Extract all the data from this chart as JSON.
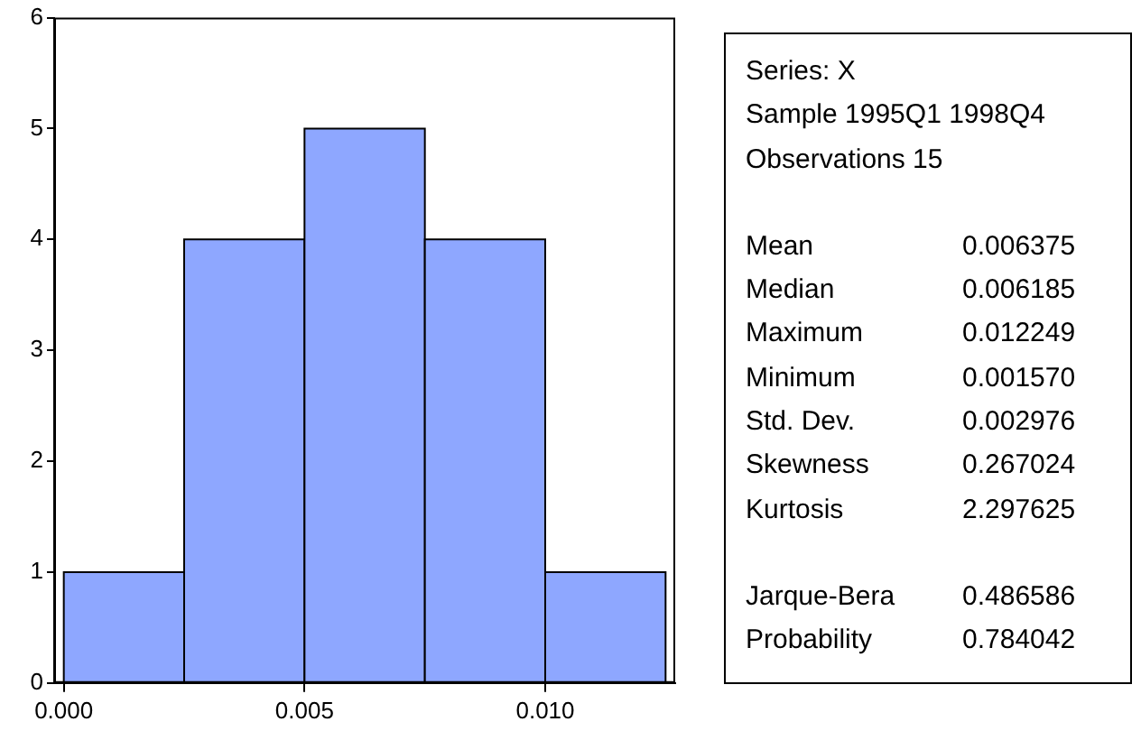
{
  "chart_data": {
    "type": "histogram",
    "bins": [
      0,
      0.0025,
      0.005,
      0.0075,
      0.01,
      0.0125
    ],
    "values": [
      1,
      4,
      5,
      4,
      1
    ],
    "color": "#8ea7ff",
    "xlim": [
      -0.0002,
      0.0127
    ],
    "xticks": [
      {
        "value": 0,
        "label": "0.000"
      },
      {
        "value": 0.005,
        "label": "0.005"
      },
      {
        "value": 0.01,
        "label": "0.010"
      }
    ],
    "ylim": [
      0,
      6
    ],
    "yticks": [
      0,
      1,
      2,
      3,
      4,
      5,
      6
    ],
    "legend": false,
    "annotations": [
      "Series: X",
      "Sample 1995Q1 1998Q4",
      "Observations 15",
      "Mean\t0.006375",
      "Median\t0.006185",
      "Maximum\t0.012249",
      "Minimum\t0.001570",
      "Std. Dev.\t0.002976",
      "Skewness\t0.267024",
      "Kurtosis\t2.297625",
      "Jarque-Bera\t0.486586",
      "Probability\t0.784042"
    ]
  }
}
